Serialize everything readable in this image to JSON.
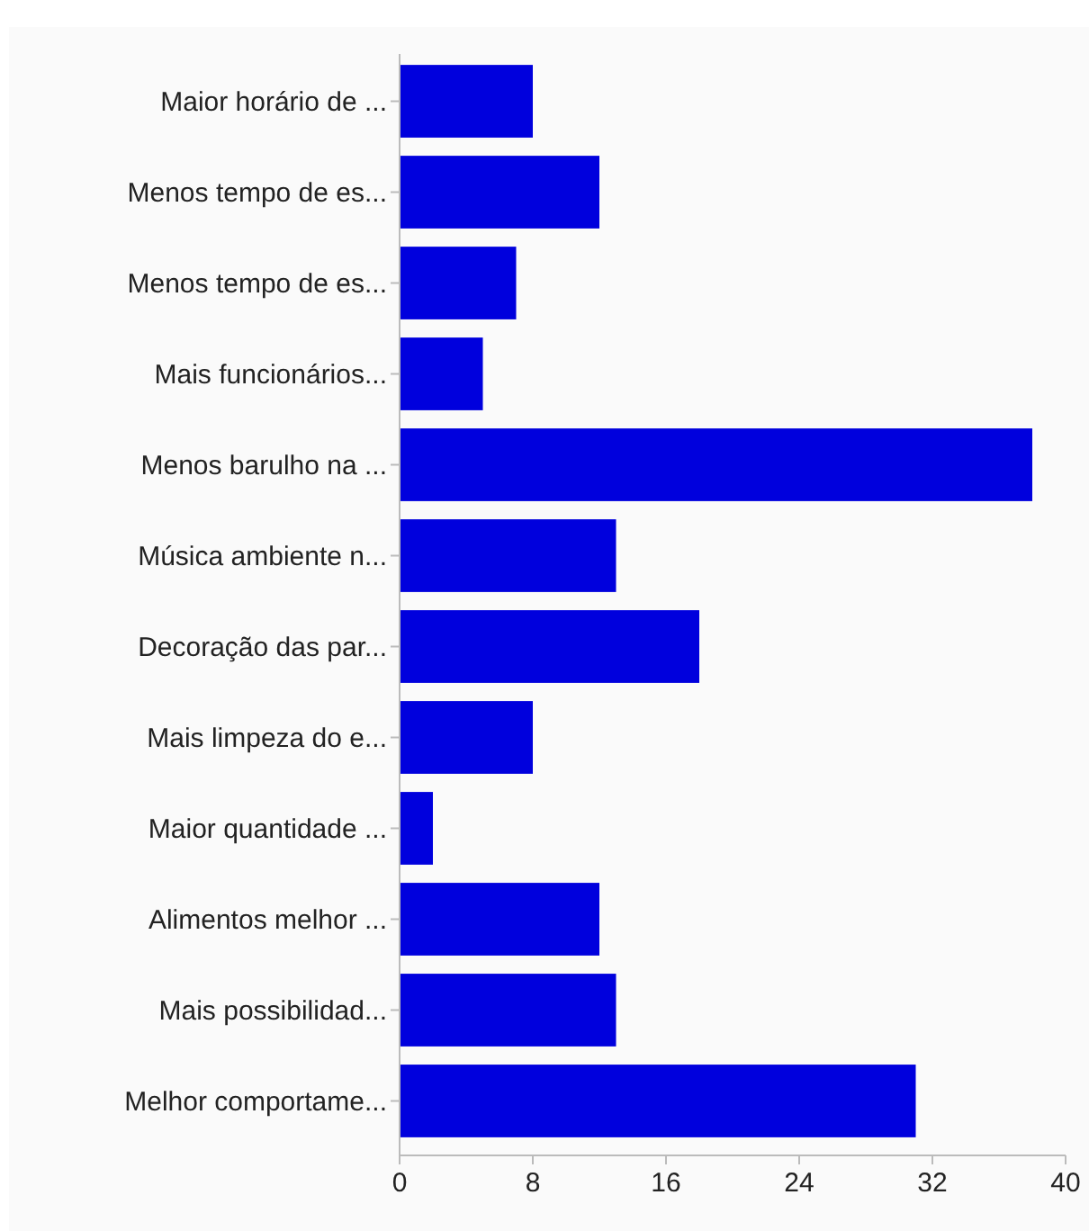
{
  "chart_data": {
    "type": "bar",
    "orientation": "horizontal",
    "categories": [
      "Maior horário de ...",
      "Menos tempo de es...",
      "Menos tempo de es...",
      "Mais funcionários...",
      "Menos barulho na ...",
      "Música ambiente n...",
      "Decoração das par...",
      "Mais limpeza do e...",
      "Maior quantidade ...",
      "Alimentos melhor ...",
      "Mais possibilidad...",
      "Melhor comportame..."
    ],
    "values": [
      8,
      12,
      7,
      5,
      38,
      13,
      18,
      8,
      2,
      12,
      13,
      31
    ],
    "color": "#0000dd",
    "xlim": [
      0,
      40
    ],
    "xticks": [
      0,
      8,
      16,
      24,
      32,
      40
    ],
    "grid": false
  }
}
